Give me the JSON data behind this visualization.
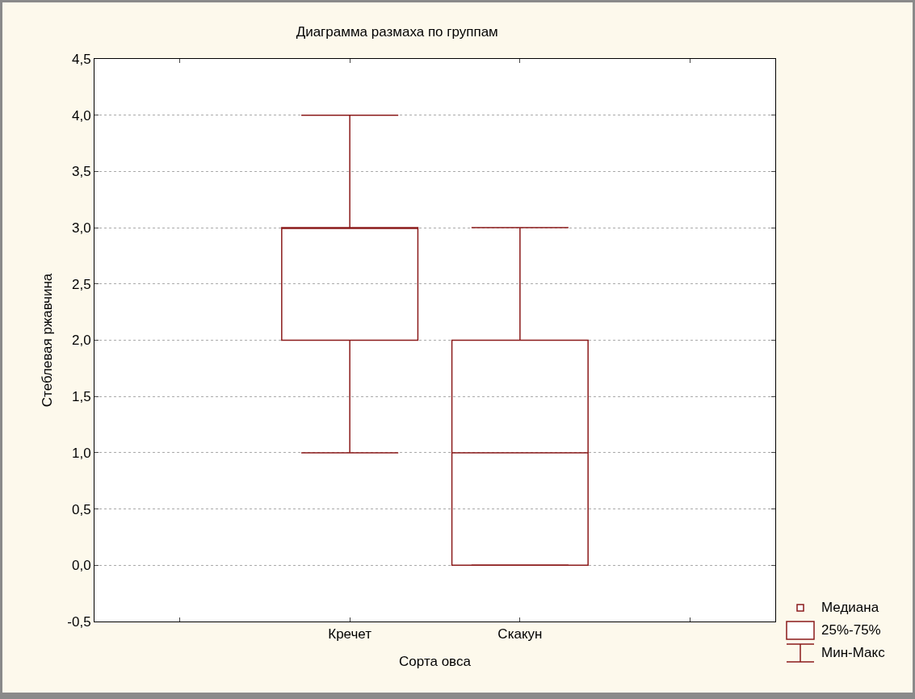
{
  "chart_data": {
    "type": "box",
    "title": "Диаграмма размаха по группам",
    "xlabel": "Сорта овса",
    "ylabel": "Стеблевая ржавчина",
    "categories": [
      "Кречет",
      "Скакун"
    ],
    "boxes": [
      {
        "low": 1,
        "q1": 2,
        "median": 3,
        "q3": 3,
        "high": 4
      },
      {
        "low": 0,
        "q1": 0,
        "median": 1,
        "q3": 2,
        "high": 3
      }
    ],
    "color": "#8b1a1a",
    "grid": "y",
    "ylim": [
      -0.5,
      4.5
    ],
    "yticks": [
      {
        "value": -0.5,
        "label": "-0,5"
      },
      {
        "value": 0,
        "label": "0,0"
      },
      {
        "value": 0.5,
        "label": "0,5"
      },
      {
        "value": 1,
        "label": "1,0"
      },
      {
        "value": 1.5,
        "label": "1,5"
      },
      {
        "value": 2,
        "label": "2,0"
      },
      {
        "value": 2.5,
        "label": "2,5"
      },
      {
        "value": 3,
        "label": "3,0"
      },
      {
        "value": 3.5,
        "label": "3,5"
      },
      {
        "value": 4,
        "label": "4,0"
      },
      {
        "value": 4.5,
        "label": "4,5"
      }
    ],
    "annotations": [
      "Медиана",
      "25%-75%",
      "Мин-Макс"
    ]
  }
}
